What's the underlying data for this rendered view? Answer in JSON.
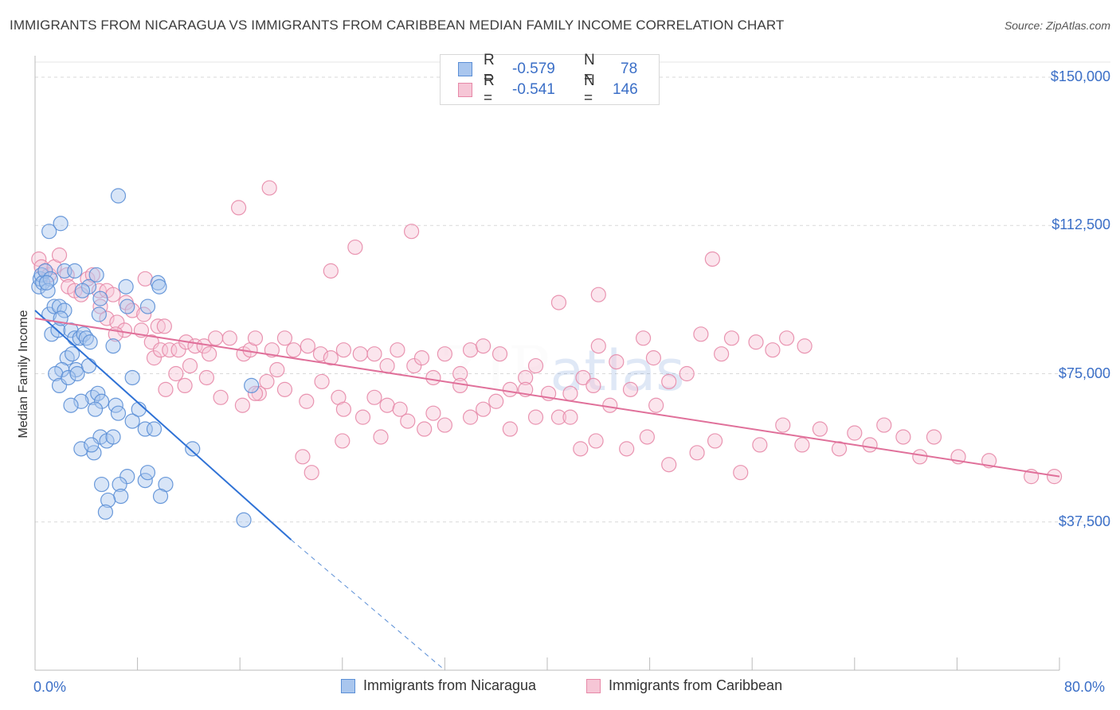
{
  "chart_data": {
    "type": "scatter",
    "title": "IMMIGRANTS FROM NICARAGUA VS IMMIGRANTS FROM CARIBBEAN MEDIAN FAMILY INCOME CORRELATION CHART",
    "source": "Source: ZipAtlas.com",
    "ylabel": "Median Family Income",
    "xlabel": "",
    "xlim": [
      0,
      80
    ],
    "ylim": [
      0,
      155000
    ],
    "x_tick_labels": {
      "min": "0.0%",
      "max": "80.0%"
    },
    "y_ticks": [
      {
        "value": 37500,
        "label": "$37,500"
      },
      {
        "value": 75000,
        "label": "$75,000"
      },
      {
        "value": 112500,
        "label": "$112,500"
      },
      {
        "value": 150000,
        "label": "$150,000"
      }
    ],
    "watermark": "ZIPatlas",
    "legend": {
      "rows": [
        {
          "r_label": "R =",
          "r_value": "-0.579",
          "n_label": "N =",
          "n_value": "78"
        },
        {
          "r_label": "R =",
          "r_value": "-0.541",
          "n_label": "N =",
          "n_value": "146"
        }
      ]
    },
    "series": [
      {
        "name": "Immigrants from Nicaragua",
        "color": "#5b8fd6",
        "fill": "#a9c6ee",
        "trend": {
          "x0": 0,
          "y0": 91000,
          "x1": 20,
          "y1": 33000,
          "dash_to_x": 32
        },
        "points": [
          [
            0.3,
            97
          ],
          [
            0.4,
            99
          ],
          [
            0.5,
            100
          ],
          [
            0.6,
            98
          ],
          [
            0.8,
            101
          ],
          [
            1.2,
            99
          ],
          [
            1.0,
            96
          ],
          [
            0.9,
            98
          ],
          [
            1.1,
            90
          ],
          [
            1.5,
            92
          ],
          [
            1.9,
            92
          ],
          [
            2.3,
            91
          ],
          [
            1.3,
            85
          ],
          [
            1.8,
            86
          ],
          [
            2.0,
            89
          ],
          [
            2.8,
            86
          ],
          [
            3.1,
            84
          ],
          [
            3.5,
            84
          ],
          [
            3.8,
            85
          ],
          [
            4.0,
            84
          ],
          [
            4.3,
            83
          ],
          [
            2.5,
            79
          ],
          [
            2.9,
            80
          ],
          [
            3.2,
            76
          ],
          [
            2.1,
            76
          ],
          [
            1.6,
            75
          ],
          [
            1.9,
            72
          ],
          [
            2.6,
            74
          ],
          [
            3.3,
            75
          ],
          [
            4.2,
            77
          ],
          [
            4.5,
            69
          ],
          [
            4.9,
            70
          ],
          [
            5.2,
            68
          ],
          [
            3.6,
            68
          ],
          [
            2.8,
            67
          ],
          [
            6.3,
            67
          ],
          [
            6.5,
            65
          ],
          [
            4.7,
            66
          ],
          [
            7.6,
            63
          ],
          [
            8.1,
            66
          ],
          [
            8.6,
            61
          ],
          [
            9.3,
            61
          ],
          [
            5.1,
            59
          ],
          [
            5.6,
            58
          ],
          [
            6.1,
            59
          ],
          [
            3.6,
            56
          ],
          [
            4.6,
            55
          ],
          [
            4.4,
            57
          ],
          [
            7.2,
            49
          ],
          [
            8.6,
            48
          ],
          [
            8.8,
            50
          ],
          [
            10.2,
            47
          ],
          [
            5.2,
            47
          ],
          [
            6.6,
            47
          ],
          [
            6.7,
            44
          ],
          [
            5.7,
            43
          ],
          [
            9.8,
            44
          ],
          [
            5.5,
            40
          ],
          [
            12.3,
            56
          ],
          [
            16.3,
            38
          ],
          [
            6.5,
            120
          ],
          [
            2.0,
            113
          ],
          [
            1.1,
            111
          ],
          [
            2.3,
            101
          ],
          [
            3.1,
            101
          ],
          [
            4.8,
            100
          ],
          [
            4.2,
            97
          ],
          [
            3.7,
            96
          ],
          [
            5.1,
            94
          ],
          [
            7.1,
            97
          ],
          [
            9.6,
            98
          ],
          [
            9.7,
            97
          ],
          [
            7.2,
            92
          ],
          [
            8.8,
            92
          ],
          [
            5.0,
            90
          ],
          [
            6.1,
            82
          ],
          [
            7.6,
            74
          ],
          [
            16.9,
            72
          ]
        ]
      },
      {
        "name": "Immigrants from Caribbean",
        "color": "#e789a8",
        "fill": "#f6c6d6",
        "trend": {
          "x0": 0,
          "y0": 89000,
          "x1": 80,
          "y1": 49000
        },
        "points": [
          [
            0.3,
            104
          ],
          [
            0.5,
            102
          ],
          [
            0.8,
            101
          ],
          [
            1.1,
            100
          ],
          [
            1.5,
            102
          ],
          [
            1.9,
            105
          ],
          [
            2.5,
            100
          ],
          [
            2.6,
            97
          ],
          [
            3.1,
            96
          ],
          [
            3.6,
            95
          ],
          [
            4.1,
            99
          ],
          [
            4.5,
            100
          ],
          [
            5.0,
            96
          ],
          [
            5.6,
            96
          ],
          [
            6.1,
            95
          ],
          [
            7.1,
            93
          ],
          [
            7.6,
            91
          ],
          [
            8.5,
            90
          ],
          [
            8.6,
            99
          ],
          [
            9.6,
            87
          ],
          [
            10.1,
            87
          ],
          [
            5.1,
            92
          ],
          [
            5.6,
            89
          ],
          [
            6.4,
            88
          ],
          [
            7.0,
            86
          ],
          [
            6.3,
            85
          ],
          [
            8.3,
            86
          ],
          [
            9.1,
            83
          ],
          [
            9.3,
            79
          ],
          [
            9.8,
            81
          ],
          [
            10.5,
            81
          ],
          [
            11.2,
            81
          ],
          [
            11.8,
            83
          ],
          [
            12.5,
            82
          ],
          [
            13.2,
            82
          ],
          [
            13.6,
            80
          ],
          [
            14.1,
            84
          ],
          [
            15.2,
            84
          ],
          [
            16.3,
            80
          ],
          [
            16.8,
            81
          ],
          [
            17.2,
            84
          ],
          [
            18.5,
            81
          ],
          [
            19.5,
            84
          ],
          [
            20.2,
            81
          ],
          [
            21.3,
            82
          ],
          [
            22.3,
            80
          ],
          [
            23.1,
            79
          ],
          [
            24.1,
            81
          ],
          [
            25.4,
            80
          ],
          [
            26.5,
            80
          ],
          [
            27.5,
            77
          ],
          [
            28.3,
            81
          ],
          [
            29.6,
            77
          ],
          [
            30.2,
            79
          ],
          [
            31.1,
            74
          ],
          [
            32.0,
            80
          ],
          [
            33.2,
            75
          ],
          [
            34.0,
            81
          ],
          [
            35.0,
            82
          ],
          [
            36.3,
            80
          ],
          [
            37.1,
            71
          ],
          [
            38.3,
            74
          ],
          [
            39.1,
            77
          ],
          [
            40.1,
            70
          ],
          [
            41.8,
            70
          ],
          [
            42.8,
            74
          ],
          [
            44.0,
            82
          ],
          [
            45.4,
            78
          ],
          [
            46.5,
            71
          ],
          [
            47.5,
            84
          ],
          [
            48.3,
            79
          ],
          [
            49.5,
            73
          ],
          [
            50.9,
            75
          ],
          [
            52.0,
            85
          ],
          [
            53.6,
            80
          ],
          [
            54.4,
            84
          ],
          [
            56.3,
            83
          ],
          [
            57.6,
            81
          ],
          [
            10.2,
            71
          ],
          [
            11.0,
            75
          ],
          [
            11.7,
            72
          ],
          [
            12.1,
            77
          ],
          [
            13.4,
            74
          ],
          [
            14.5,
            69
          ],
          [
            16.2,
            67
          ],
          [
            17.5,
            70
          ],
          [
            18.1,
            73
          ],
          [
            19.5,
            71
          ],
          [
            21.2,
            68
          ],
          [
            22.4,
            73
          ],
          [
            23.7,
            69
          ],
          [
            24.1,
            66
          ],
          [
            25.6,
            64
          ],
          [
            26.5,
            69
          ],
          [
            27.5,
            67
          ],
          [
            28.5,
            66
          ],
          [
            29.1,
            63
          ],
          [
            30.4,
            61
          ],
          [
            31.1,
            65
          ],
          [
            32.0,
            62
          ],
          [
            33.2,
            72
          ],
          [
            34.0,
            64
          ],
          [
            35.0,
            66
          ],
          [
            36.0,
            68
          ],
          [
            37.1,
            61
          ],
          [
            38.3,
            71
          ],
          [
            39.1,
            64
          ],
          [
            40.9,
            64
          ],
          [
            41.8,
            64
          ],
          [
            42.6,
            56
          ],
          [
            43.8,
            58
          ],
          [
            44.9,
            67
          ],
          [
            46.2,
            56
          ],
          [
            47.8,
            59
          ],
          [
            49.5,
            52
          ],
          [
            51.7,
            55
          ],
          [
            53.1,
            58
          ],
          [
            55.1,
            50
          ],
          [
            56.6,
            57
          ],
          [
            58.4,
            62
          ],
          [
            59.9,
            57
          ],
          [
            61.3,
            61
          ],
          [
            62.8,
            56
          ],
          [
            64.0,
            60
          ],
          [
            65.2,
            57
          ],
          [
            66.3,
            62
          ],
          [
            67.8,
            59
          ],
          [
            69.1,
            54
          ],
          [
            70.2,
            59
          ],
          [
            72.1,
            54
          ],
          [
            74.5,
            53
          ],
          [
            77.8,
            49
          ],
          [
            79.6,
            49
          ],
          [
            15.9,
            117
          ],
          [
            18.3,
            122
          ],
          [
            29.4,
            111
          ],
          [
            25.0,
            107
          ],
          [
            23.1,
            101
          ],
          [
            40.9,
            93
          ],
          [
            44.0,
            95
          ],
          [
            52.9,
            104
          ],
          [
            58.7,
            84
          ],
          [
            60.1,
            82
          ],
          [
            43.6,
            72
          ],
          [
            48.5,
            67
          ],
          [
            17.2,
            70
          ],
          [
            18.9,
            76
          ],
          [
            24.0,
            58
          ],
          [
            27.0,
            59
          ],
          [
            20.9,
            54
          ],
          [
            21.6,
            50
          ]
        ]
      }
    ]
  }
}
